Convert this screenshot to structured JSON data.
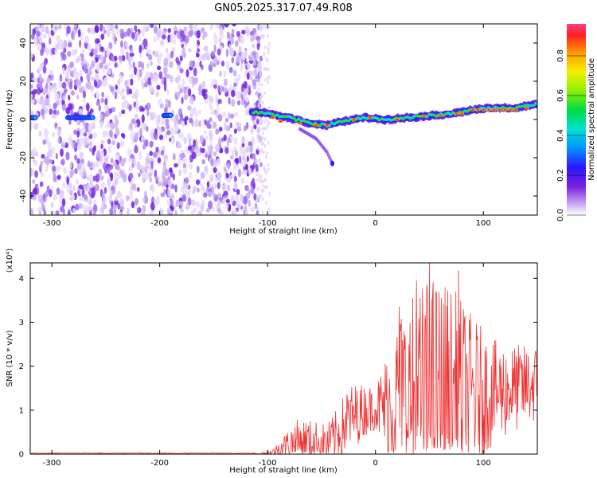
{
  "title": "GN05.2025.317.07.49.R08",
  "chart_data": [
    {
      "type": "heatmap",
      "title": "GN05.2025.317.07.49.R08",
      "xlabel": "Height of straight line (km)",
      "ylabel": "Frequency (Hz)",
      "xlim": [
        -320,
        150
      ],
      "ylim": [
        -50,
        50
      ],
      "xticks": [
        -300,
        -200,
        -100,
        0,
        100
      ],
      "yticks": [
        -40,
        -20,
        0,
        20,
        40
      ],
      "colorbar": {
        "label": "Normalized spectral amplitude",
        "ticks": [
          0.0,
          0.2,
          0.4,
          0.6,
          0.8
        ],
        "range": [
          0,
          0.96
        ]
      },
      "noise_region_x": [
        -320,
        -110
      ],
      "ridge": {
        "x": [
          -320,
          -260,
          -200,
          -110,
          -80,
          -60,
          -45,
          -30,
          -10,
          10,
          30,
          50,
          70,
          90,
          110,
          130,
          150
        ],
        "freq_hz": [
          1,
          1,
          2,
          4,
          1,
          -2,
          -3,
          -1,
          1,
          0,
          1,
          2,
          3,
          5,
          6,
          6,
          8
        ]
      },
      "tail": {
        "x": [
          -70,
          -55,
          -45,
          -40
        ],
        "freq_hz": [
          -5,
          -10,
          -17,
          -23
        ]
      }
    },
    {
      "type": "line",
      "xlabel": "Height of straight line (km)",
      "ylabel": "SNR (10 * v/v)",
      "yscale_label": "(x10⁴)",
      "xlim": [
        -320,
        150
      ],
      "ylim": [
        0,
        4.35
      ],
      "xticks": [
        -300,
        -200,
        -100,
        0,
        100
      ],
      "yticks": [
        0,
        1,
        2,
        3,
        4
      ],
      "color": "#ee3333",
      "envelope": {
        "x": [
          -320,
          -110,
          -95,
          -80,
          -70,
          -60,
          -45,
          -35,
          -25,
          -10,
          0,
          15,
          25,
          40,
          50,
          70,
          90,
          110,
          130,
          150
        ],
        "base": [
          0.0,
          0.0,
          0.05,
          0.25,
          0.3,
          0.28,
          0.25,
          0.45,
          0.8,
          1.0,
          1.05,
          1.1,
          1.2,
          1.2,
          1.25,
          1.3,
          1.35,
          1.4,
          1.5,
          1.6
        ],
        "amp": [
          0.0,
          0.0,
          0.08,
          0.35,
          0.55,
          0.5,
          0.45,
          0.6,
          0.8,
          0.6,
          0.5,
          1.6,
          2.3,
          2.6,
          2.9,
          2.6,
          1.8,
          1.2,
          1.0,
          0.9
        ]
      },
      "peaks": [
        {
          "x": 50,
          "y": 4.35
        },
        {
          "x": 77,
          "y": 4.18
        },
        {
          "x": 38,
          "y": 3.95
        },
        {
          "x": 22,
          "y": 3.35
        }
      ]
    }
  ]
}
